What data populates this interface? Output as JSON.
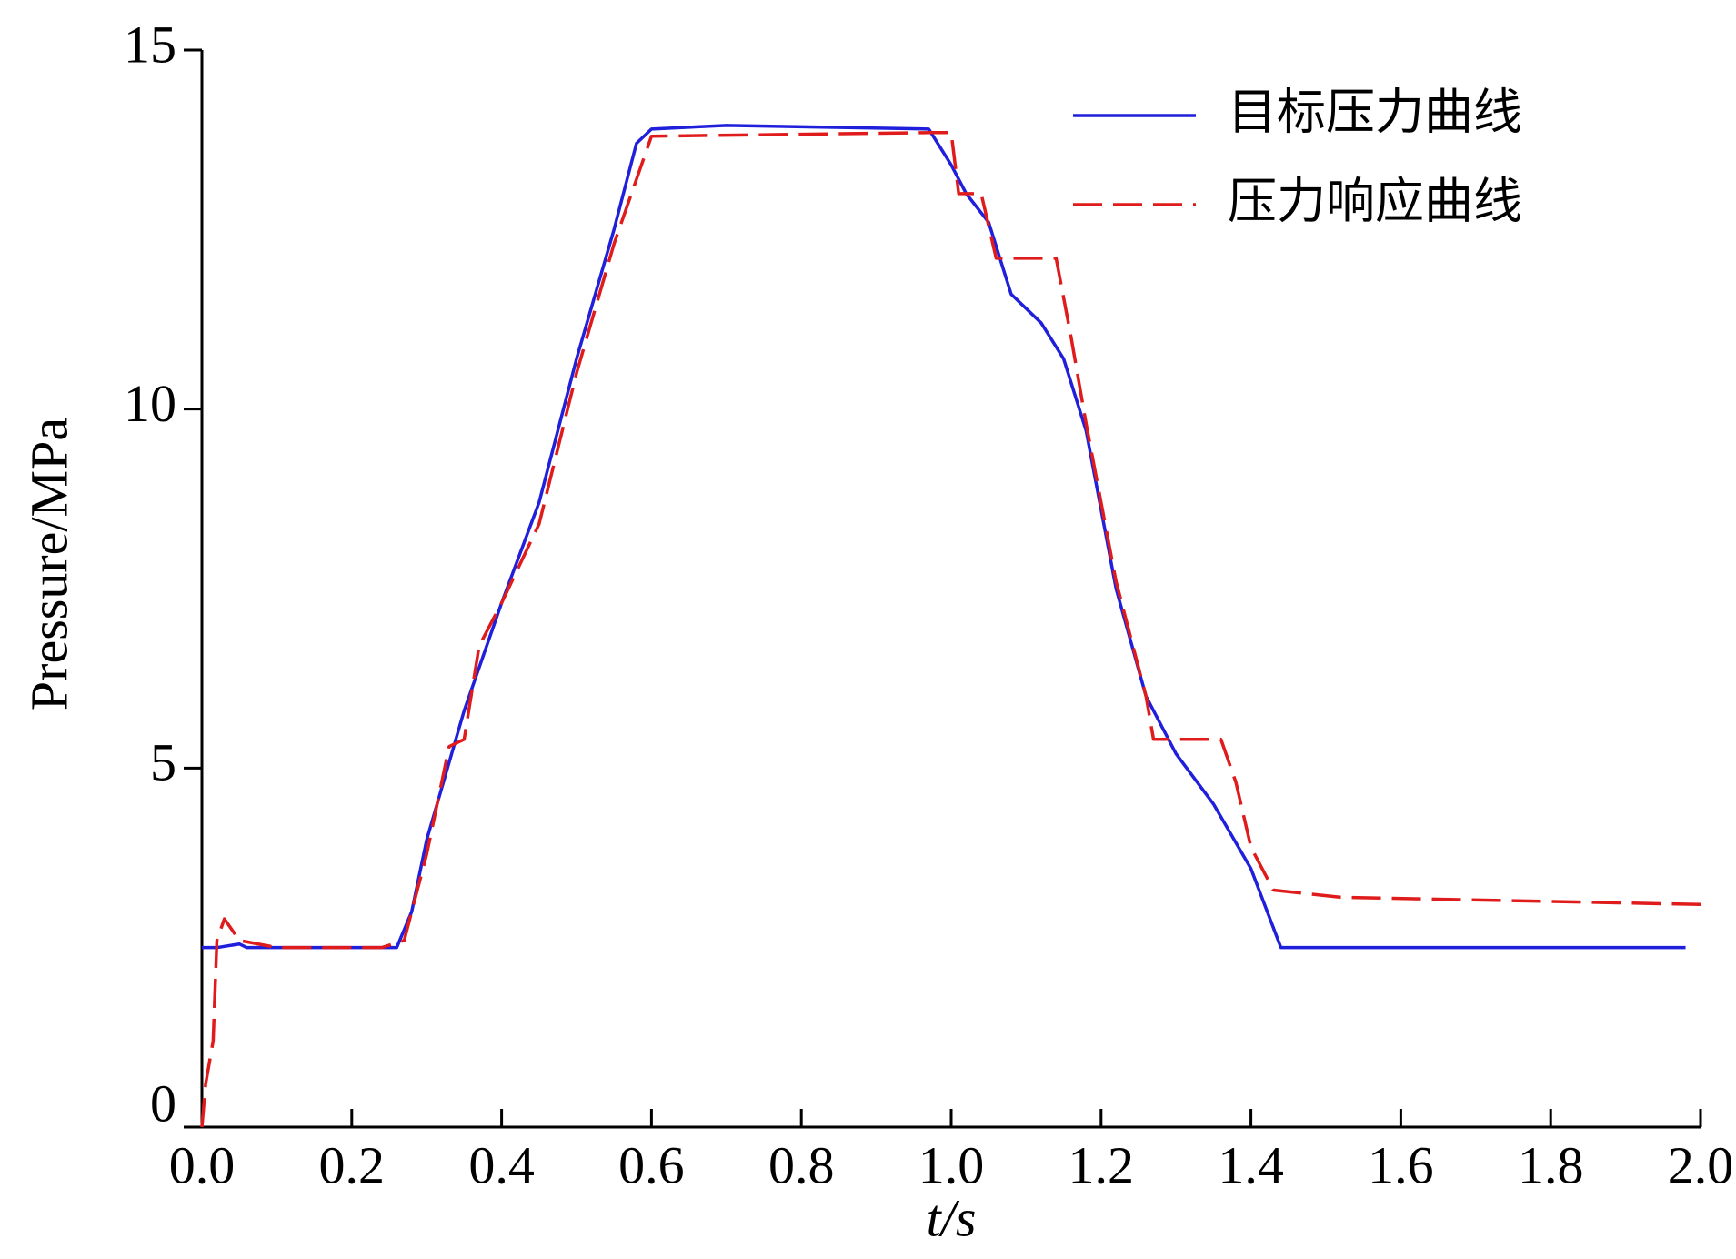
{
  "chart_data": {
    "type": "line",
    "xlabel": "t/s",
    "ylabel": "Pressure/MPa",
    "xlim": [
      0,
      2.0
    ],
    "ylim": [
      0,
      15
    ],
    "xticks": [
      {
        "value": 0,
        "label": "0.0"
      },
      0.2,
      0.4,
      0.6,
      0.8,
      {
        "value": 1,
        "label": "1.0"
      },
      1.2,
      1.4,
      1.6,
      1.8,
      {
        "value": 2,
        "label": "2.0"
      }
    ],
    "yticks": [
      0,
      5,
      10,
      15
    ],
    "legend": "upper right",
    "series": [
      {
        "name": "目标压力曲线",
        "color": "#1f1fdc",
        "dash": "solid",
        "x": [
          0,
          0.02,
          0.05,
          0.06,
          0.26,
          0.28,
          0.3,
          0.35,
          0.4,
          0.45,
          0.5,
          0.55,
          0.58,
          0.6,
          0.7,
          0.97,
          1.0,
          1.02,
          1.05,
          1.08,
          1.12,
          1.15,
          1.18,
          1.22,
          1.26,
          1.3,
          1.35,
          1.4,
          1.44,
          1.98
        ],
        "values": [
          2.5,
          2.5,
          2.55,
          2.5,
          2.5,
          3.0,
          4.0,
          5.8,
          7.3,
          8.7,
          10.7,
          12.5,
          13.7,
          13.9,
          13.95,
          13.9,
          13.4,
          13.0,
          12.6,
          11.6,
          11.2,
          10.7,
          9.7,
          7.5,
          6.0,
          5.2,
          4.5,
          3.6,
          2.5,
          2.5
        ]
      },
      {
        "name": "压力响应曲线",
        "color": "#e01b1b",
        "dash": "dashed",
        "x": [
          0,
          0.005,
          0.015,
          0.02,
          0.03,
          0.05,
          0.1,
          0.24,
          0.27,
          0.3,
          0.33,
          0.35,
          0.37,
          0.4,
          0.45,
          0.5,
          0.55,
          0.6,
          0.97,
          1.0,
          1.01,
          1.04,
          1.06,
          1.14,
          1.16,
          1.18,
          1.22,
          1.26,
          1.27,
          1.36,
          1.38,
          1.4,
          1.43,
          1.52,
          2.0
        ],
        "values": [
          0,
          0.6,
          1.2,
          2.6,
          2.9,
          2.6,
          2.5,
          2.5,
          2.6,
          3.8,
          5.3,
          5.4,
          6.7,
          7.3,
          8.4,
          10.5,
          12.3,
          13.8,
          13.85,
          13.85,
          13.0,
          13.0,
          12.1,
          12.1,
          11.0,
          9.8,
          7.6,
          6.0,
          5.4,
          5.4,
          4.8,
          3.9,
          3.3,
          3.2,
          3.1
        ]
      }
    ]
  }
}
